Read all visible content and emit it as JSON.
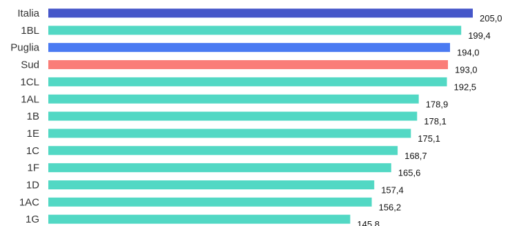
{
  "chart_data": {
    "type": "bar",
    "orientation": "horizontal",
    "categories": [
      "Italia",
      "1BL",
      "Puglia",
      "Sud",
      "1CL",
      "1AL",
      "1B",
      "1E",
      "1C",
      "1F",
      "1D",
      "1AC",
      "1G"
    ],
    "values": [
      205.0,
      199.4,
      194.0,
      193.0,
      192.5,
      178.9,
      178.1,
      175.1,
      168.7,
      165.6,
      157.4,
      156.2,
      145.8
    ],
    "value_labels": [
      "205,0",
      "199,4",
      "194,0",
      "193,0",
      "192,5",
      "178,9",
      "178,1",
      "175,1",
      "168,7",
      "165,6",
      "157,4",
      "156,2",
      "145,8"
    ],
    "colors": [
      "#4556c9",
      "#52d8c4",
      "#4a7af2",
      "#fa7d78",
      "#52d8c4",
      "#52d8c4",
      "#52d8c4",
      "#52d8c4",
      "#52d8c4",
      "#52d8c4",
      "#52d8c4",
      "#52d8c4",
      "#52d8c4"
    ],
    "xlim": [
      0,
      205.0
    ],
    "grid": false,
    "legend": "none"
  }
}
